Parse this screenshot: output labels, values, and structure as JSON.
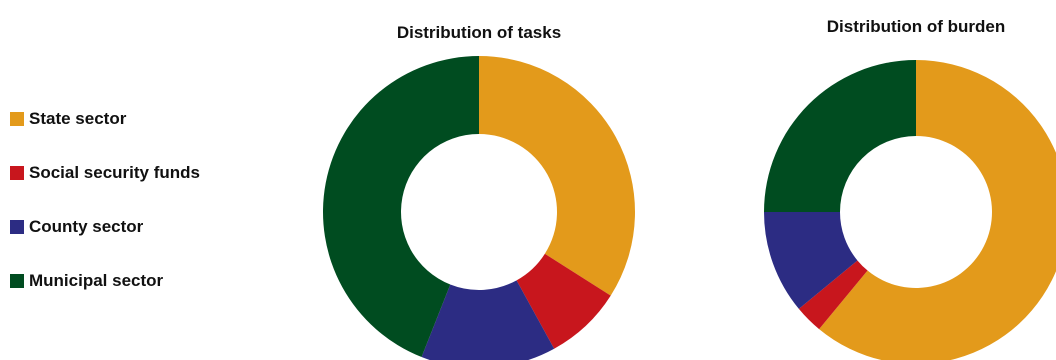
{
  "legend": {
    "items": [
      {
        "label": "State sector",
        "color": "#E39A1B"
      },
      {
        "label": "Social security funds",
        "color": "#C8161D"
      },
      {
        "label": "County sector",
        "color": "#2C2C83"
      },
      {
        "label": "Municipal sector",
        "color": "#004C20"
      }
    ]
  },
  "chart_data": [
    {
      "type": "pie",
      "style": "donut",
      "title": "Distribution of tasks",
      "categories": [
        "State sector",
        "Social security funds",
        "County sector",
        "Municipal sector"
      ],
      "values": [
        34,
        8,
        14,
        44
      ],
      "unit": "percent"
    },
    {
      "type": "pie",
      "style": "donut",
      "title": "Distribution of burden",
      "categories": [
        "State sector",
        "Social security funds",
        "County sector",
        "Municipal sector"
      ],
      "values": [
        61,
        3,
        11,
        25
      ],
      "unit": "percent"
    }
  ]
}
